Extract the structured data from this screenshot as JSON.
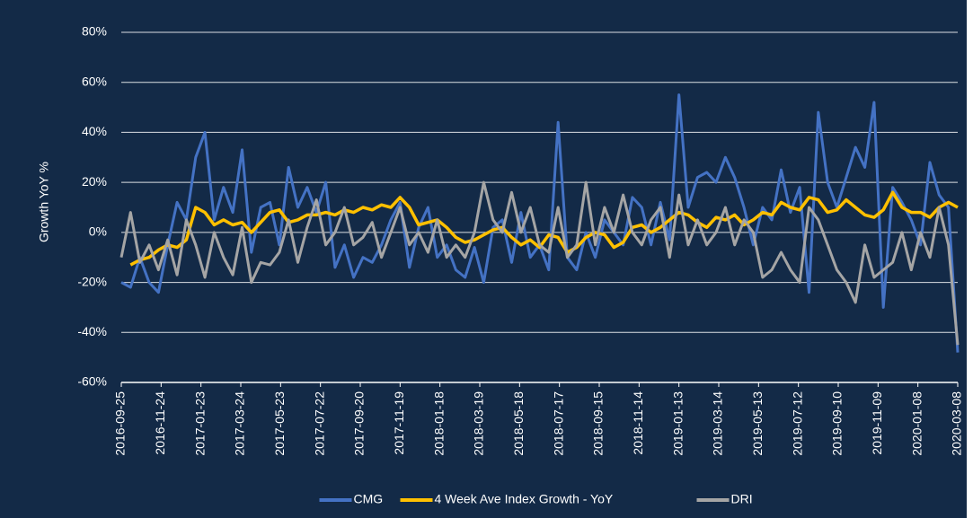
{
  "chart_data": {
    "type": "line",
    "y_label": "Growth YoY %",
    "x": [
      "2016-09-25",
      "2016-10-09",
      "2016-10-23",
      "2016-11-06",
      "2016-11-20",
      "2016-12-04",
      "2016-12-18",
      "2017-01-01",
      "2017-01-15",
      "2017-01-29",
      "2017-02-12",
      "2017-02-26",
      "2017-03-12",
      "2017-03-26",
      "2017-04-09",
      "2017-04-23",
      "2017-05-07",
      "2017-05-21",
      "2017-06-04",
      "2017-06-18",
      "2017-07-02",
      "2017-07-16",
      "2017-07-30",
      "2017-08-13",
      "2017-08-27",
      "2017-09-10",
      "2017-09-24",
      "2017-10-08",
      "2017-10-22",
      "2017-11-05",
      "2017-11-19",
      "2017-12-03",
      "2017-12-17",
      "2017-12-31",
      "2018-01-14",
      "2018-01-28",
      "2018-02-11",
      "2018-02-25",
      "2018-03-11",
      "2018-03-25",
      "2018-04-08",
      "2018-04-22",
      "2018-05-06",
      "2018-05-20",
      "2018-06-03",
      "2018-06-17",
      "2018-07-01",
      "2018-07-15",
      "2018-07-29",
      "2018-08-12",
      "2018-08-26",
      "2018-09-09",
      "2018-09-23",
      "2018-10-07",
      "2018-10-21",
      "2018-11-04",
      "2018-11-18",
      "2018-12-02",
      "2018-12-16",
      "2018-12-30",
      "2019-01-13",
      "2019-01-27",
      "2019-02-10",
      "2019-02-24",
      "2019-03-10",
      "2019-03-24",
      "2019-04-07",
      "2019-04-21",
      "2019-05-05",
      "2019-05-19",
      "2019-06-02",
      "2019-06-16",
      "2019-06-30",
      "2019-07-14",
      "2019-07-28",
      "2019-08-11",
      "2019-08-25",
      "2019-09-08",
      "2019-09-22",
      "2019-10-06",
      "2019-10-20",
      "2019-11-03",
      "2019-11-17",
      "2019-12-01",
      "2019-12-15",
      "2019-12-29",
      "2020-01-12",
      "2020-01-26",
      "2020-02-09",
      "2020-02-23",
      "2020-03-08"
    ],
    "series": [
      {
        "name": "CMG",
        "color": "#4472c4",
        "values": [
          -20,
          -22,
          -10,
          -20,
          -24,
          -5,
          12,
          5,
          30,
          40,
          5,
          18,
          8,
          33,
          -8,
          10,
          12,
          -5,
          26,
          10,
          18,
          8,
          20,
          -14,
          -5,
          -18,
          -10,
          -12,
          -5,
          5,
          12,
          -14,
          2,
          10,
          -10,
          -5,
          -15,
          -18,
          -6,
          -20,
          2,
          5,
          -12,
          8,
          -10,
          -5,
          -15,
          44,
          -10,
          -15,
          0,
          -10,
          5,
          0,
          -5,
          14,
          10,
          -5,
          12,
          -3,
          55,
          10,
          22,
          24,
          20,
          30,
          22,
          10,
          -5,
          10,
          5,
          25,
          8,
          18,
          -24,
          48,
          20,
          10,
          22,
          34,
          26,
          52,
          -30,
          18,
          12,
          5,
          -5,
          28,
          15,
          10,
          -48
        ]
      },
      {
        "name": "4 Week Ave  Index Growth - YoY",
        "color": "#ffc000",
        "values": [
          null,
          -13,
          -11,
          -10,
          -7,
          -5,
          -6,
          -3,
          10,
          8,
          3,
          5,
          3,
          4,
          0,
          4,
          8,
          9,
          4,
          5,
          7,
          7,
          8,
          7,
          9,
          8,
          10,
          9,
          11,
          10,
          14,
          10,
          3,
          4,
          5,
          2,
          -2,
          -4,
          -3,
          -1,
          1,
          2,
          -2,
          -5,
          -3,
          -6,
          -1,
          -2,
          -8,
          -6,
          -2,
          0,
          -1,
          -6,
          -4,
          2,
          3,
          0,
          2,
          5,
          8,
          7,
          4,
          2,
          6,
          5,
          7,
          3,
          5,
          8,
          7,
          12,
          10,
          9,
          14,
          13,
          8,
          9,
          13,
          10,
          7,
          6,
          9,
          16,
          10,
          8,
          8,
          6,
          10,
          12,
          10
        ]
      },
      {
        "name": "DRI",
        "color": "#a5a5a5",
        "values": [
          -10,
          8,
          -12,
          -5,
          -15,
          -3,
          -17,
          5,
          -5,
          -18,
          0,
          -10,
          -17,
          2,
          -20,
          -12,
          -13,
          -8,
          5,
          -12,
          2,
          13,
          -5,
          0,
          10,
          -5,
          -2,
          4,
          -10,
          0,
          10,
          -5,
          0,
          -8,
          5,
          -10,
          -5,
          -10,
          0,
          20,
          5,
          0,
          16,
          0,
          10,
          -5,
          -8,
          10,
          -10,
          -5,
          20,
          -5,
          10,
          0,
          15,
          0,
          -5,
          5,
          10,
          -10,
          15,
          -5,
          5,
          -5,
          0,
          10,
          -5,
          5,
          0,
          -18,
          -15,
          -8,
          -15,
          -20,
          10,
          5,
          -5,
          -15,
          -20,
          -28,
          -5,
          -18,
          -15,
          -12,
          0,
          -15,
          0,
          -10,
          10,
          -5,
          -45
        ]
      }
    ],
    "xlim": [
      "2016-09-25",
      "2020-03-08"
    ],
    "xticks": [
      "2016-09-25",
      "2016-11-24",
      "2017-01-23",
      "2017-03-24",
      "2017-05-23",
      "2017-07-22",
      "2017-09-20",
      "2017-11-19",
      "2018-01-18",
      "2018-03-19",
      "2018-05-18",
      "2018-07-17",
      "2018-09-15",
      "2018-11-14",
      "2019-01-13",
      "2019-03-14",
      "2019-05-13",
      "2019-07-12",
      "2019-09-10",
      "2019-11-09",
      "2020-01-08",
      "2020-03-08"
    ],
    "ylim": [
      -60,
      80
    ],
    "yticks": [
      {
        "value": -60,
        "label": "-60%"
      },
      {
        "value": -40,
        "label": "-40%"
      },
      {
        "value": -20,
        "label": "-20%"
      },
      {
        "value": 0,
        "label": "0%"
      },
      {
        "value": 20,
        "label": "20%"
      },
      {
        "value": 40,
        "label": "40%"
      },
      {
        "value": 60,
        "label": "60%"
      },
      {
        "value": 80,
        "label": "80%"
      }
    ],
    "grid": true,
    "legend": "bottom"
  }
}
